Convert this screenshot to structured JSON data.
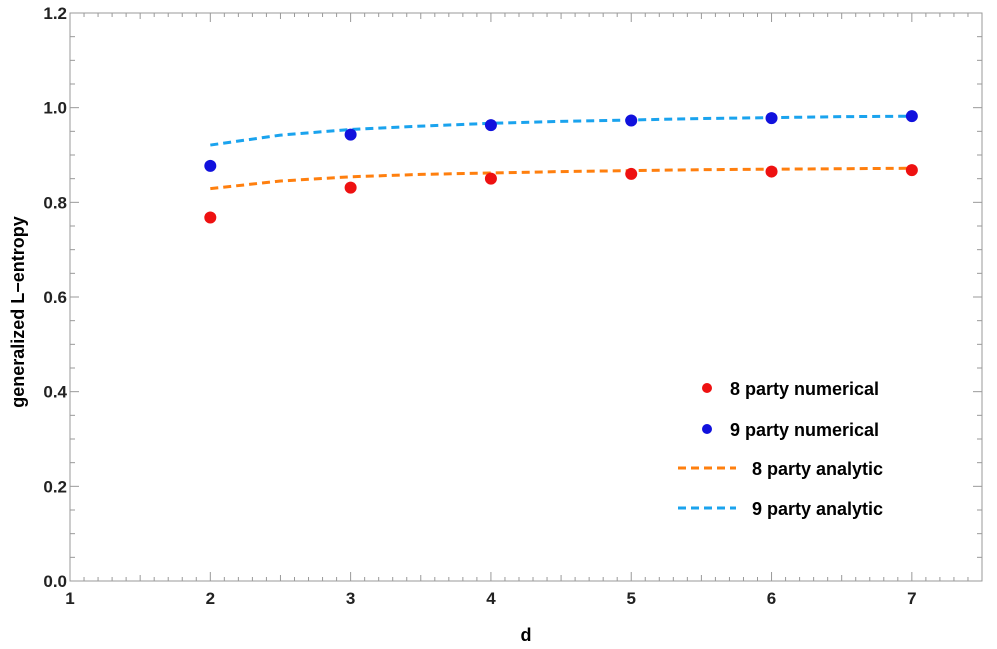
{
  "chart_data": {
    "type": "scatter",
    "title": "",
    "xlabel": "d",
    "ylabel": "generalized L−entropy",
    "xlim": [
      1,
      7.5
    ],
    "ylim": [
      0,
      1.2
    ],
    "x_ticks": [
      "1",
      "2",
      "3",
      "4",
      "5",
      "6",
      "7"
    ],
    "y_ticks": [
      "0.0",
      "0.2",
      "0.4",
      "0.6",
      "0.8",
      "1.0",
      "1.2"
    ],
    "grid": false,
    "legend_position": "bottom-right",
    "series": [
      {
        "name": "8 party numerical",
        "kind": "points",
        "color": "#ee1111",
        "x": [
          2,
          3,
          4,
          5,
          6,
          7
        ],
        "y": [
          0.768,
          0.831,
          0.85,
          0.86,
          0.865,
          0.868
        ]
      },
      {
        "name": "9 party numerical",
        "kind": "points",
        "color": "#1111dd",
        "x": [
          2,
          3,
          4,
          5,
          6,
          7
        ],
        "y": [
          0.877,
          0.943,
          0.963,
          0.973,
          0.978,
          0.982
        ]
      },
      {
        "name": "8 party analytic",
        "kind": "dashed-line",
        "color": "#ff7f0e",
        "x": [
          2,
          2.5,
          3,
          3.5,
          4,
          4.5,
          5,
          5.5,
          6,
          6.5,
          7
        ],
        "y": [
          0.829,
          0.845,
          0.854,
          0.859,
          0.862,
          0.865,
          0.867,
          0.869,
          0.87,
          0.871,
          0.872
        ]
      },
      {
        "name": "9 party analytic",
        "kind": "dashed-line",
        "color": "#1aa3ee",
        "x": [
          2,
          2.5,
          3,
          3.5,
          4,
          4.5,
          5,
          5.5,
          6,
          6.5,
          7
        ],
        "y": [
          0.921,
          0.942,
          0.954,
          0.961,
          0.967,
          0.971,
          0.974,
          0.977,
          0.979,
          0.981,
          0.982
        ]
      }
    ]
  }
}
